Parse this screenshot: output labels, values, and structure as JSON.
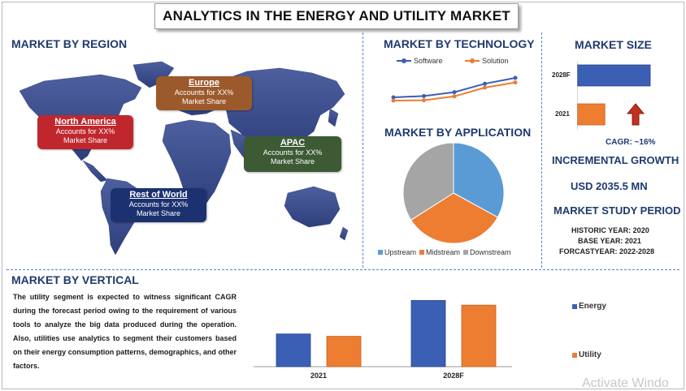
{
  "title": "ANALYTICS IN THE ENERGY AND UTILITY MARKET",
  "region": {
    "heading": "MARKET BY REGION",
    "callouts": [
      {
        "name": "North America",
        "share": "Accounts for XX%",
        "share2": "Market Share",
        "color": "#c0272d"
      },
      {
        "name": "Europe",
        "share": "Accounts for XX%",
        "share2": "Market Share",
        "color": "#9c5a2c"
      },
      {
        "name": "APAC",
        "share": "Accounts for XX%",
        "share2": "Market Share",
        "color": "#3c5a34"
      },
      {
        "name": "Rest of World",
        "share": "Accounts for XX%",
        "share2": "Market Share",
        "color": "#1c3270"
      }
    ]
  },
  "technology": {
    "heading": "MARKET BY TECHNOLOGY"
  },
  "application": {
    "heading": "MARKET BY APPLICATION"
  },
  "market_size": {
    "heading": "MARKET SIZE",
    "cagr": "CAGR:  ~16%"
  },
  "growth": {
    "heading": "INCREMENTAL GROWTH",
    "value": "USD 2035.5 MN"
  },
  "study": {
    "heading": "MARKET STUDY PERIOD",
    "historic": "HISTORIC YEAR: 2020",
    "base": "BASE YEAR: 2021",
    "forecast": "FORCASTYEAR: 2022-2028"
  },
  "vertical": {
    "heading": "MARKET BY VERTICAL",
    "text": "The utility segment is expected to witness significant CAGR during the forecast period owing to the requirement of various tools to analyze the big data produced during the operation. Also, utilities use analytics to segment their customers based on their energy consumption patterns, demographics, and other factors."
  },
  "watermark": "Activate Windo",
  "colors": {
    "blue": "#3b5fb5",
    "orange": "#ed7d31",
    "gray": "#a5a5a5",
    "lightblue": "#5b9bd5",
    "heading": "#1f3a6e"
  },
  "chart_data": [
    {
      "type": "line",
      "x": [
        1,
        2,
        3,
        4,
        5
      ],
      "series": [
        {
          "name": "Software",
          "values": [
            2.0,
            2.4,
            3.6,
            6.2,
            8.0
          ]
        },
        {
          "name": "Solution",
          "values": [
            1.0,
            1.1,
            2.3,
            5.0,
            6.6
          ]
        }
      ],
      "ylim": [
        0,
        10
      ]
    },
    {
      "type": "pie",
      "labels": [
        "Upstream",
        "Midstream",
        "Downstream"
      ],
      "values": [
        33,
        33,
        34
      ]
    },
    {
      "type": "bar",
      "orientation": "horizontal",
      "categories": [
        "2028F",
        "2021"
      ],
      "values": [
        100,
        38
      ]
    },
    {
      "type": "bar",
      "categories": [
        "2021",
        "2028F"
      ],
      "series": [
        {
          "name": "Energy",
          "values": [
            42,
            85
          ]
        },
        {
          "name": "Utility",
          "values": [
            39,
            79
          ]
        }
      ],
      "ylim": [
        0,
        100
      ]
    }
  ]
}
